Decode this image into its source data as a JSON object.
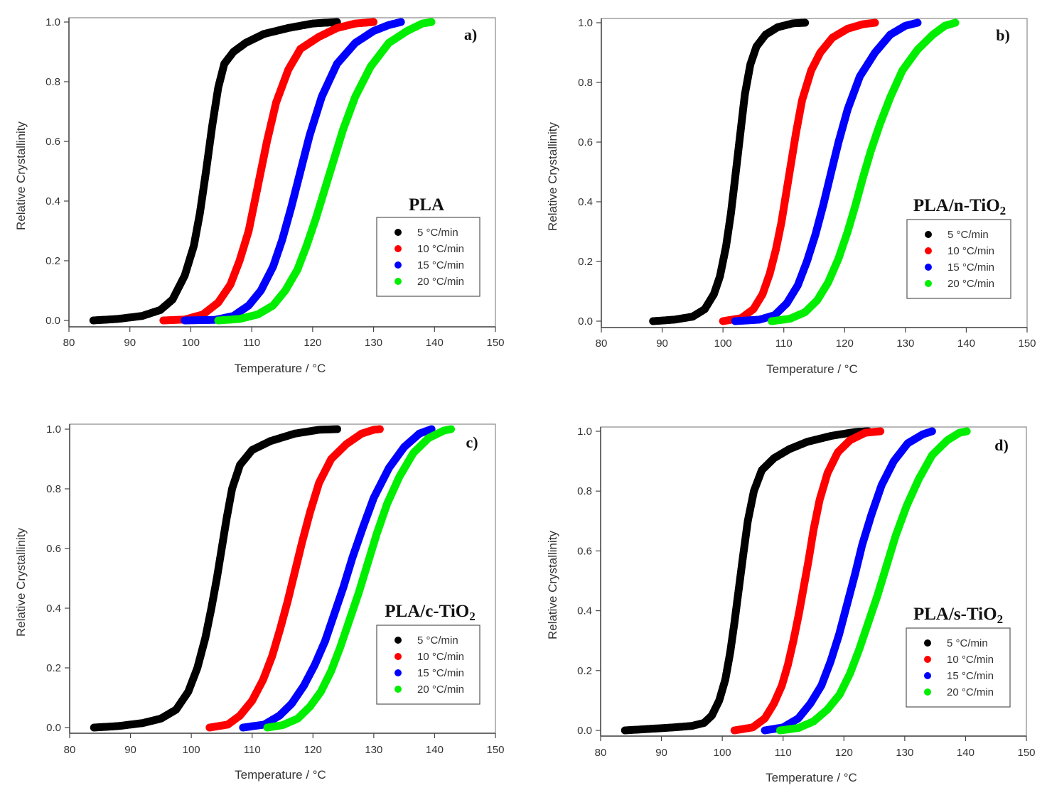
{
  "figure": {
    "description": "Relative crystallinity vs temperature for PLA and PLA/TiO2 composites at four cooling rates"
  },
  "chart_data": [
    {
      "type": "scatter",
      "panel": "a)",
      "title": "PLA",
      "title_sub": "",
      "xlabel": "Temperature / °C",
      "ylabel": "Relative Crystallinity",
      "xlim": [
        80,
        150
      ],
      "ylim": [
        0.0,
        1.0
      ],
      "xticks": [
        "80",
        "90",
        "100",
        "110",
        "120",
        "130",
        "140",
        "150"
      ],
      "yticks": [
        "0.0",
        "0.2",
        "0.4",
        "0.6",
        "0.8",
        "1.0"
      ],
      "grid": false,
      "legend_position": "bottom-right",
      "series": [
        {
          "name": "5 °C/min",
          "color": "#000000",
          "x": [
            84,
            88,
            92,
            95,
            97,
            99,
            100.5,
            101.5,
            102.5,
            103.5,
            104.5,
            105.5,
            107,
            109,
            112,
            116,
            120,
            124
          ],
          "y": [
            0.0,
            0.005,
            0.015,
            0.035,
            0.07,
            0.15,
            0.25,
            0.36,
            0.5,
            0.65,
            0.78,
            0.86,
            0.9,
            0.93,
            0.96,
            0.98,
            0.995,
            1.0
          ]
        },
        {
          "name": "10 °C/min",
          "color": "#ff0000",
          "x": [
            95.5,
            99,
            102,
            104.5,
            106.5,
            108,
            109.5,
            110.5,
            111.5,
            112.5,
            114,
            116,
            118,
            121,
            124,
            127,
            130
          ],
          "y": [
            0.0,
            0.003,
            0.02,
            0.06,
            0.12,
            0.2,
            0.3,
            0.4,
            0.5,
            0.6,
            0.73,
            0.84,
            0.91,
            0.95,
            0.98,
            0.995,
            1.0
          ]
        },
        {
          "name": "15 °C/min",
          "color": "#0000ff",
          "x": [
            99,
            104,
            107,
            109.5,
            111.5,
            113.5,
            115,
            116.5,
            118,
            119.5,
            121.5,
            124,
            127,
            130,
            132.5,
            134.5
          ],
          "y": [
            0.0,
            0.002,
            0.015,
            0.05,
            0.1,
            0.18,
            0.27,
            0.38,
            0.5,
            0.62,
            0.75,
            0.86,
            0.93,
            0.97,
            0.99,
            1.0
          ]
        },
        {
          "name": "20 °C/min",
          "color": "#00ee00",
          "x": [
            104.5,
            108,
            111,
            113.5,
            115.5,
            117.5,
            119,
            120.5,
            122,
            123.5,
            125,
            127,
            129.5,
            132.5,
            135.5,
            138,
            139.5
          ],
          "y": [
            0.0,
            0.005,
            0.02,
            0.05,
            0.1,
            0.17,
            0.25,
            0.34,
            0.44,
            0.54,
            0.64,
            0.75,
            0.85,
            0.93,
            0.97,
            0.995,
            1.0
          ]
        }
      ]
    },
    {
      "type": "scatter",
      "panel": "b)",
      "title": "PLA/n-TiO",
      "title_sub": "2",
      "xlabel": "Temperature / °C",
      "ylabel": "Relative Crystallinity",
      "xlim": [
        80,
        150
      ],
      "ylim": [
        0.0,
        1.0
      ],
      "xticks": [
        "80",
        "90",
        "100",
        "110",
        "120",
        "130",
        "140",
        "150"
      ],
      "yticks": [
        "0.0",
        "0.2",
        "0.4",
        "0.6",
        "0.8",
        "1.0"
      ],
      "grid": false,
      "legend_position": "bottom-right",
      "series": [
        {
          "name": "5 °C/min",
          "color": "#000000",
          "x": [
            88.5,
            92,
            95,
            97,
            98.5,
            99.5,
            100.5,
            101.3,
            102,
            102.8,
            103.6,
            104.5,
            105.5,
            107,
            109,
            111.5,
            113.5
          ],
          "y": [
            0.0,
            0.005,
            0.015,
            0.04,
            0.09,
            0.15,
            0.25,
            0.36,
            0.48,
            0.62,
            0.76,
            0.86,
            0.92,
            0.96,
            0.985,
            0.998,
            1.0
          ]
        },
        {
          "name": "10 °C/min",
          "color": "#ff0000",
          "x": [
            100,
            103,
            105,
            106.5,
            107.7,
            108.7,
            109.6,
            110.4,
            111.2,
            112,
            113,
            114.5,
            116,
            118,
            120.5,
            123,
            125
          ],
          "y": [
            0.0,
            0.01,
            0.04,
            0.09,
            0.16,
            0.24,
            0.33,
            0.43,
            0.53,
            0.63,
            0.74,
            0.84,
            0.9,
            0.95,
            0.98,
            0.995,
            1.0
          ]
        },
        {
          "name": "15 °C/min",
          "color": "#0000ff",
          "x": [
            102,
            106,
            108.5,
            110.5,
            112.3,
            113.8,
            115.2,
            116.5,
            117.8,
            119,
            120.5,
            122.5,
            125,
            127.5,
            130,
            132
          ],
          "y": [
            0.0,
            0.005,
            0.02,
            0.06,
            0.12,
            0.2,
            0.29,
            0.39,
            0.5,
            0.6,
            0.71,
            0.82,
            0.9,
            0.96,
            0.99,
            1.0
          ]
        },
        {
          "name": "20 °C/min",
          "color": "#00ee00",
          "x": [
            108,
            111,
            113.5,
            115.5,
            117.3,
            119,
            120.5,
            121.8,
            123,
            124.3,
            125.8,
            127.5,
            129.5,
            132,
            134.5,
            136.5,
            138.2
          ],
          "y": [
            0.0,
            0.008,
            0.03,
            0.07,
            0.13,
            0.21,
            0.3,
            0.39,
            0.48,
            0.57,
            0.66,
            0.75,
            0.84,
            0.91,
            0.96,
            0.99,
            1.0
          ]
        }
      ]
    },
    {
      "type": "scatter",
      "panel": "c)",
      "title": "PLA/c-TiO",
      "title_sub": "2",
      "xlabel": "Temperature / °C",
      "ylabel": "Relative Crystallinity",
      "xlim": [
        80,
        150
      ],
      "ylim": [
        0.0,
        1.0
      ],
      "xticks": [
        "80",
        "90",
        "100",
        "110",
        "120",
        "130",
        "140",
        "150"
      ],
      "yticks": [
        "0.0",
        "0.2",
        "0.4",
        "0.6",
        "0.8",
        "1.0"
      ],
      "grid": false,
      "legend_position": "bottom-right",
      "series": [
        {
          "name": "5 °C/min",
          "color": "#000000",
          "x": [
            84,
            88,
            92,
            95,
            97.5,
            99.5,
            101,
            102.3,
            103.3,
            104.2,
            105,
            105.8,
            106.7,
            108,
            110,
            113,
            117,
            121,
            124
          ],
          "y": [
            0.0,
            0.005,
            0.015,
            0.03,
            0.06,
            0.12,
            0.2,
            0.3,
            0.4,
            0.5,
            0.6,
            0.7,
            0.8,
            0.88,
            0.93,
            0.96,
            0.985,
            0.998,
            1.0
          ]
        },
        {
          "name": "10 °C/min",
          "color": "#ff0000",
          "x": [
            103,
            106,
            108,
            110,
            111.8,
            113.3,
            114.6,
            115.8,
            117,
            118.2,
            119.5,
            121,
            123,
            125.5,
            128,
            130,
            131
          ],
          "y": [
            0.0,
            0.01,
            0.04,
            0.09,
            0.16,
            0.24,
            0.33,
            0.42,
            0.52,
            0.62,
            0.72,
            0.82,
            0.9,
            0.95,
            0.985,
            0.998,
            1.0
          ]
        },
        {
          "name": "15 °C/min",
          "color": "#0000ff",
          "x": [
            108.5,
            112,
            114.5,
            116.5,
            118.5,
            120.3,
            122,
            123.5,
            125,
            126.5,
            128.2,
            130,
            132.5,
            135,
            137.5,
            139.5
          ],
          "y": [
            0.0,
            0.01,
            0.04,
            0.08,
            0.14,
            0.21,
            0.29,
            0.38,
            0.47,
            0.57,
            0.67,
            0.77,
            0.87,
            0.94,
            0.985,
            1.0
          ]
        },
        {
          "name": "20 °C/min",
          "color": "#00ee00",
          "x": [
            112.5,
            115,
            117.5,
            119.5,
            121.3,
            123,
            124.5,
            126,
            127.5,
            129,
            130.5,
            132.2,
            134.2,
            136.5,
            139,
            141.5,
            142.7
          ],
          "y": [
            0.0,
            0.008,
            0.03,
            0.07,
            0.12,
            0.19,
            0.27,
            0.36,
            0.45,
            0.55,
            0.65,
            0.75,
            0.84,
            0.92,
            0.97,
            0.995,
            1.0
          ]
        }
      ]
    },
    {
      "type": "scatter",
      "panel": "d)",
      "title": "PLA/s-TiO",
      "title_sub": "2",
      "xlabel": "Temperature / °C",
      "ylabel": "Relative Crystallinity",
      "xlim": [
        80,
        150
      ],
      "ylim": [
        0.0,
        1.0
      ],
      "xticks": [
        "80",
        "90",
        "100",
        "110",
        "120",
        "130",
        "140",
        "150"
      ],
      "yticks": [
        "0.0",
        "0.2",
        "0.4",
        "0.6",
        "0.8",
        "1.0"
      ],
      "grid": false,
      "legend_position": "bottom-right",
      "series": [
        {
          "name": "5 °C/min",
          "color": "#000000",
          "x": [
            84,
            88,
            92,
            95,
            97,
            98.3,
            99.5,
            100.5,
            101.3,
            102,
            102.7,
            103.4,
            104.2,
            105.2,
            106.5,
            108.5,
            111,
            114,
            118,
            122,
            124
          ],
          "y": [
            0.0,
            0.005,
            0.01,
            0.015,
            0.025,
            0.05,
            0.1,
            0.17,
            0.26,
            0.36,
            0.47,
            0.58,
            0.7,
            0.8,
            0.87,
            0.91,
            0.94,
            0.965,
            0.985,
            0.998,
            1.0
          ]
        },
        {
          "name": "10 °C/min",
          "color": "#ff0000",
          "x": [
            102,
            105,
            107,
            108.5,
            109.8,
            110.8,
            111.7,
            112.6,
            113.4,
            114.2,
            115,
            116,
            117.3,
            119,
            121,
            123.5,
            126
          ],
          "y": [
            0.0,
            0.01,
            0.04,
            0.09,
            0.15,
            0.22,
            0.3,
            0.39,
            0.48,
            0.57,
            0.67,
            0.77,
            0.86,
            0.93,
            0.97,
            0.995,
            1.0
          ]
        },
        {
          "name": "15 °C/min",
          "color": "#0000ff",
          "x": [
            107,
            110,
            112.5,
            114.5,
            116.3,
            117.8,
            119.2,
            120.5,
            121.8,
            123,
            124.5,
            126.2,
            128.2,
            130.5,
            133,
            134.5
          ],
          "y": [
            0.0,
            0.01,
            0.04,
            0.09,
            0.15,
            0.23,
            0.32,
            0.42,
            0.52,
            0.62,
            0.72,
            0.82,
            0.9,
            0.96,
            0.99,
            1.0
          ]
        },
        {
          "name": "20 °C/min",
          "color": "#00ee00",
          "x": [
            109.5,
            112.5,
            115,
            117.3,
            119.3,
            121,
            122.5,
            124,
            125.5,
            127,
            128.5,
            130.3,
            132.3,
            134.5,
            137,
            139,
            140.2
          ],
          "y": [
            0.0,
            0.008,
            0.03,
            0.07,
            0.12,
            0.19,
            0.27,
            0.36,
            0.45,
            0.55,
            0.65,
            0.75,
            0.84,
            0.92,
            0.97,
            0.995,
            1.0
          ]
        }
      ]
    }
  ]
}
